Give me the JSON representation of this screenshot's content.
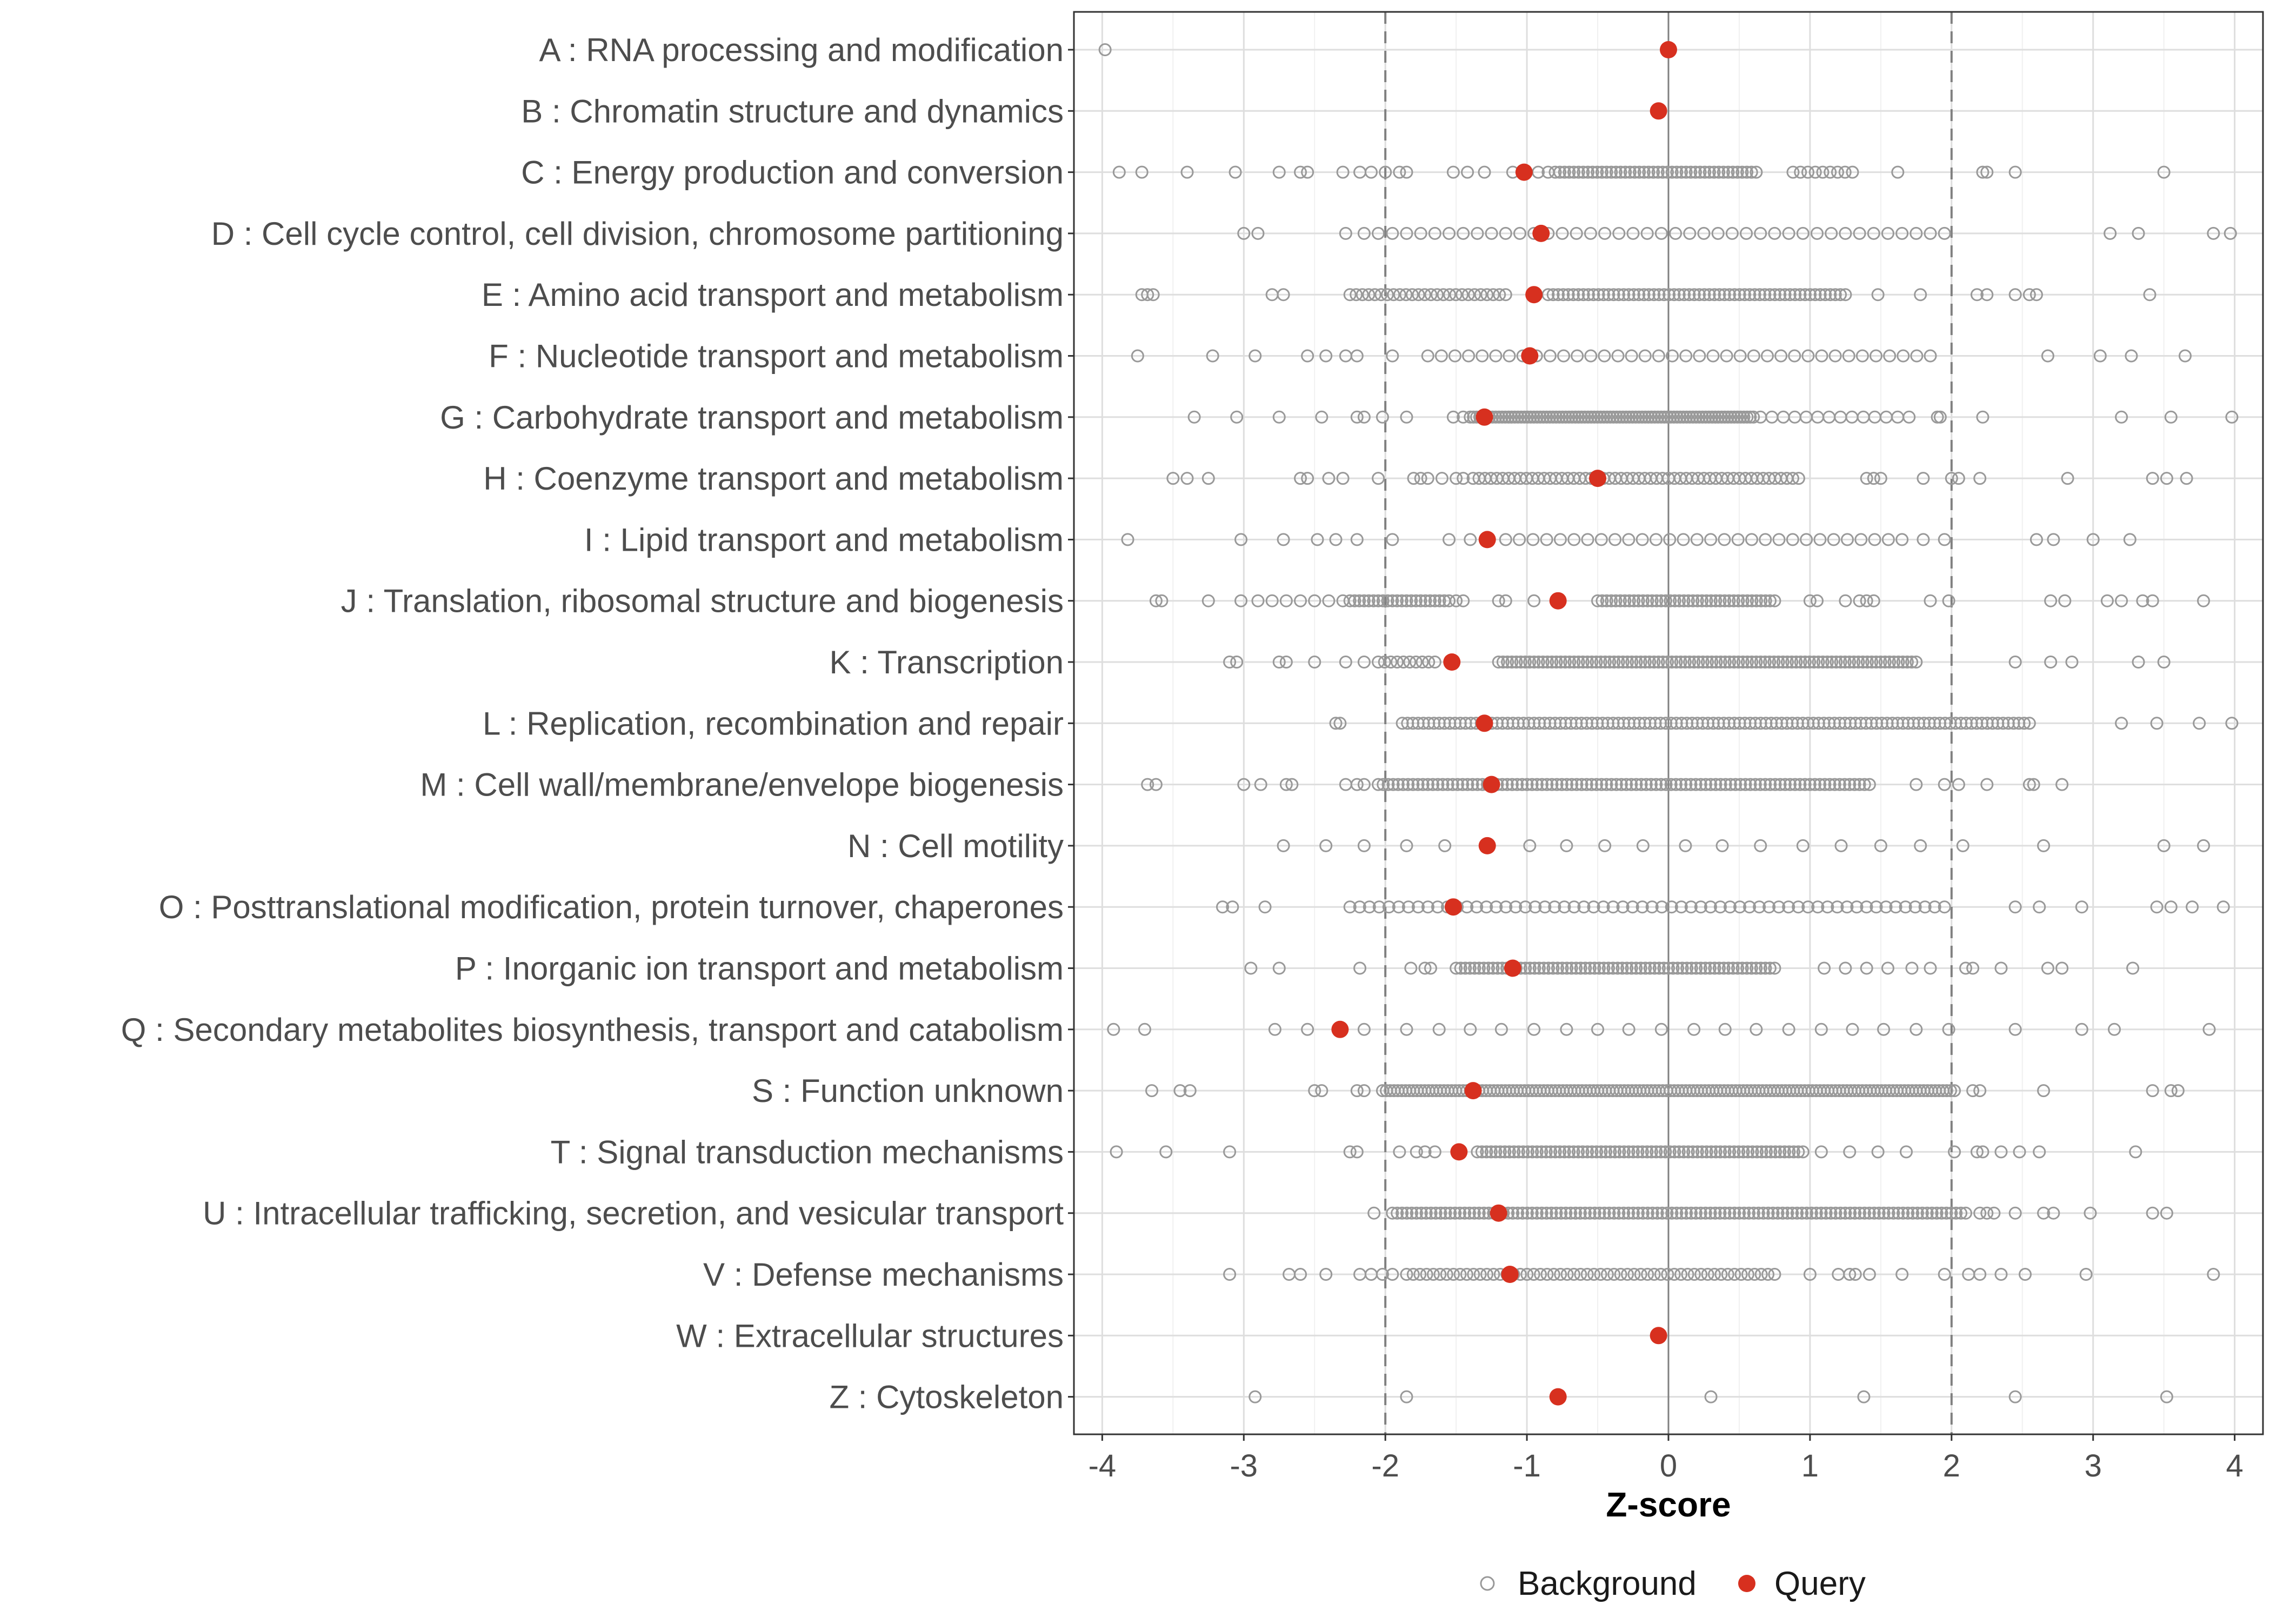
{
  "chart_data": {
    "type": "scatter",
    "title": "",
    "xlabel": "Z-score",
    "ylabel": "",
    "xlim": [
      -4.2,
      4.2
    ],
    "x_ticks": [
      -4,
      -3,
      -2,
      -1,
      0,
      1,
      2,
      3,
      4
    ],
    "x_tick_labels": [
      "-4",
      "-3",
      "-2",
      "-1",
      "0",
      "1",
      "2",
      "3",
      "4"
    ],
    "reference_lines": [
      {
        "x": -2,
        "style": "dashed"
      },
      {
        "x": 0,
        "style": "solid"
      },
      {
        "x": 2,
        "style": "dashed"
      }
    ],
    "grid": true,
    "legend": {
      "position": "bottom",
      "entries": [
        {
          "label": "Background",
          "marker": "open-circle",
          "color": "#999999"
        },
        {
          "label": "Query",
          "marker": "filled-circle",
          "color": "#d7301f"
        }
      ]
    },
    "colors": {
      "background": "#999999",
      "query": "#d7301f",
      "grid": "#dedede",
      "refline": "#808080"
    },
    "categories": [
      {
        "label": "A : RNA processing and modification",
        "query": 0.0,
        "background": [
          -3.98
        ]
      },
      {
        "label": "B : Chromatin structure and dynamics",
        "query": -0.07,
        "background": []
      },
      {
        "label": "C : Energy production and conversion",
        "query": -1.02,
        "background": [
          -3.88,
          -3.72,
          -3.4,
          -3.06,
          -2.75,
          -2.6,
          -2.55,
          -2.3,
          -2.18,
          -2.1,
          -2.0,
          -1.9,
          -1.85,
          -1.52,
          -1.42,
          -1.3,
          -1.1,
          -0.92,
          -0.85,
          1.62,
          2.22,
          2.25,
          2.45,
          3.5
        ],
        "dense": [
          -0.8,
          0.62,
          44
        ],
        "dense2": [
          0.88,
          1.3,
          9
        ]
      },
      {
        "label": "D : Cell cycle control, cell division, chromosome partitioning",
        "query": -0.9,
        "background": [
          -3.0,
          -2.9,
          -2.28,
          -2.15,
          -2.05,
          3.12,
          3.32,
          3.85,
          3.97
        ],
        "dense": [
          -1.95,
          1.95,
          40
        ]
      },
      {
        "label": "E : Amino acid transport and metabolism",
        "query": -0.95,
        "background": [
          -3.72,
          -3.68,
          -3.64,
          -2.8,
          -2.72,
          3.4,
          2.6,
          2.55,
          2.45,
          2.25,
          2.18,
          1.78,
          1.48
        ],
        "dense": [
          -2.25,
          -1.15,
          26
        ],
        "dense2": [
          -0.85,
          1.25,
          60
        ]
      },
      {
        "label": "F : Nucleotide transport and metabolism",
        "query": -0.98,
        "background": [
          -3.75,
          -3.22,
          -2.92,
          -2.55,
          -2.42,
          -2.28,
          -2.2,
          -1.95,
          2.68,
          3.05,
          3.27,
          3.65
        ],
        "dense": [
          -1.7,
          1.85,
          38
        ]
      },
      {
        "label": "G : Carbohydrate transport and metabolism",
        "query": -1.3,
        "background": [
          -3.35,
          -3.05,
          -2.75,
          -2.45,
          -2.2,
          -2.15,
          -2.02,
          -1.85,
          -1.52,
          -1.45,
          1.9,
          1.92,
          2.22,
          3.2,
          3.55,
          3.98
        ],
        "dense": [
          -1.4,
          0.6,
          90
        ],
        "dense2": [
          0.65,
          1.7,
          14
        ]
      },
      {
        "label": "H : Coenzyme transport and metabolism",
        "query": -0.5,
        "background": [
          -3.5,
          -3.4,
          -3.25,
          -2.6,
          -2.55,
          -2.4,
          -2.3,
          -2.05,
          -1.8,
          -1.75,
          -1.7,
          -1.6,
          -1.5,
          -1.45,
          1.4,
          1.45,
          1.5,
          1.8,
          2.0,
          2.05,
          2.2,
          2.82,
          3.42,
          3.52,
          3.66
        ],
        "dense": [
          -1.38,
          0.92,
          56
        ]
      },
      {
        "label": "I : Lipid transport and metabolism",
        "query": -1.28,
        "background": [
          -3.82,
          -3.02,
          -2.72,
          -2.48,
          -2.35,
          -2.2,
          -1.95,
          -1.55,
          -1.4,
          1.8,
          1.95,
          2.6,
          2.72,
          3.0,
          3.26
        ],
        "dense": [
          -1.15,
          1.65,
          30
        ]
      },
      {
        "label": "J : Translation, ribosomal structure and biogenesis",
        "query": -0.78,
        "background": [
          -3.62,
          -3.58,
          -3.25,
          -3.02,
          -2.9,
          -2.8,
          -2.7,
          -2.6,
          -2.5,
          -2.4,
          -2.3,
          -1.5,
          -1.45,
          -1.2,
          -1.15,
          -0.95,
          1.0,
          1.05,
          1.25,
          1.35,
          1.4,
          1.45,
          1.85,
          1.98,
          2.7,
          2.8,
          3.1,
          3.2,
          3.35,
          3.42,
          3.78
        ],
        "dense": [
          -2.25,
          -1.55,
          22
        ],
        "dense2": [
          -0.5,
          0.75,
          40
        ]
      },
      {
        "label": "K : Transcription",
        "query": -1.53,
        "background": [
          -3.1,
          -3.05,
          -2.75,
          -2.7,
          -2.5,
          -2.28,
          -2.15,
          3.32,
          3.5,
          2.85,
          2.7,
          2.45
        ],
        "dense": [
          -2.05,
          -1.65,
          10
        ],
        "dense2": [
          -1.2,
          1.75,
          95
        ]
      },
      {
        "label": "L : Replication, recombination and repair",
        "query": -1.3,
        "background": [
          -2.35,
          -2.32,
          3.2,
          3.45,
          3.75,
          3.98
        ],
        "dense": [
          -1.88,
          2.55,
          120
        ]
      },
      {
        "label": "M : Cell wall/membrane/envelope biogenesis",
        "query": -1.25,
        "background": [
          -3.68,
          -3.62,
          -3.0,
          -2.88,
          -2.7,
          -2.66,
          -2.28,
          -2.2,
          -2.15,
          1.75,
          1.95,
          2.05,
          2.25,
          2.55,
          2.58,
          2.78
        ],
        "dense": [
          -2.05,
          1.42,
          100
        ]
      },
      {
        "label": "N : Cell motility",
        "query": -1.28,
        "background": [
          -2.72,
          -2.42,
          -2.15,
          -1.85,
          -1.58,
          -0.98,
          -0.72,
          -0.45,
          -0.18,
          0.12,
          0.38,
          0.65,
          0.95,
          1.22,
          1.5,
          1.78,
          2.08,
          2.65,
          3.5,
          3.78
        ],
        "dense": []
      },
      {
        "label": "O : Posttranslational modification, protein turnover, chaperones",
        "query": -1.52,
        "background": [
          -3.15,
          -3.08,
          -2.85,
          2.45,
          2.62,
          2.92,
          3.45,
          3.55,
          3.7,
          3.92
        ],
        "dense": [
          -2.25,
          1.95,
          62
        ]
      },
      {
        "label": "P : Inorganic ion transport and metabolism",
        "query": -1.1,
        "background": [
          -2.95,
          -2.75,
          -2.18,
          -1.82,
          -1.72,
          -1.68,
          1.1,
          1.25,
          1.4,
          1.55,
          1.72,
          1.85,
          2.1,
          2.15,
          2.35,
          2.68,
          2.78,
          3.28
        ],
        "dense": [
          -1.5,
          0.75,
          70
        ]
      },
      {
        "label": "Q : Secondary metabolites biosynthesis, transport and catabolism",
        "query": -2.32,
        "background": [
          -3.92,
          -3.7,
          -2.78,
          -2.55,
          -2.15,
          -1.85,
          -1.62,
          -1.4,
          -1.18,
          -0.95,
          -0.72,
          -0.5,
          -0.28,
          -0.05,
          0.18,
          0.4,
          0.62,
          0.85,
          1.08,
          1.3,
          1.52,
          1.75,
          1.98,
          2.45,
          2.92,
          3.15,
          3.82
        ],
        "dense": []
      },
      {
        "label": "S : Function unknown",
        "query": -1.38,
        "background": [
          -3.65,
          -3.45,
          -3.38,
          -2.5,
          -2.45,
          -2.2,
          -2.15,
          2.15,
          2.2,
          2.65,
          3.42,
          3.55,
          3.6
        ],
        "dense": [
          -2.02,
          2.02,
          150
        ]
      },
      {
        "label": "T : Signal transduction mechanisms",
        "query": -1.48,
        "background": [
          -3.9,
          -3.55,
          -3.1,
          -2.25,
          -2.2,
          -1.9,
          -1.78,
          -1.72,
          -1.65,
          1.08,
          1.28,
          1.48,
          1.68,
          2.02,
          2.18,
          2.22,
          2.35,
          2.48,
          2.62,
          3.3
        ],
        "dense": [
          -1.35,
          0.95,
          72
        ]
      },
      {
        "label": "U : Intracellular trafficking, secretion, and vesicular transport",
        "query": -1.2,
        "background": [
          -2.08,
          2.2,
          2.25,
          2.3,
          2.45,
          2.65,
          2.72,
          2.98,
          3.42,
          3.52
        ],
        "dense": [
          -1.95,
          2.1,
          120
        ]
      },
      {
        "label": "V : Defense mechanisms",
        "query": -1.12,
        "background": [
          -3.1,
          -2.68,
          -2.6,
          -2.42,
          -2.18,
          -2.1,
          -2.02,
          -1.95,
          1.0,
          1.2,
          1.28,
          1.32,
          1.42,
          1.65,
          1.95,
          2.12,
          2.2,
          2.35,
          2.52,
          2.95,
          3.85
        ],
        "dense": [
          -1.85,
          0.75,
          56
        ]
      },
      {
        "label": "W : Extracellular structures",
        "query": -0.07,
        "background": []
      },
      {
        "label": "Z : Cytoskeleton",
        "query": -0.78,
        "background": [
          -2.92,
          -1.85,
          0.3,
          1.38,
          2.45,
          3.52
        ],
        "dense": []
      }
    ]
  }
}
